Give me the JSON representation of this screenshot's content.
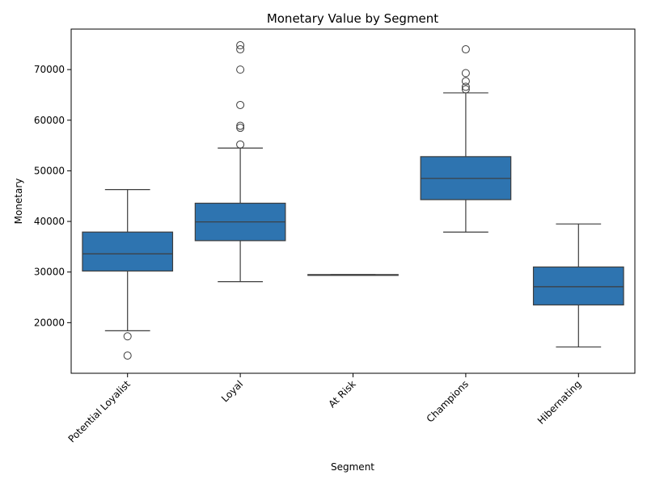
{
  "chart_data": {
    "type": "box",
    "title": "Monetary Value by Segment",
    "xlabel": "Segment",
    "ylabel": "Monetary",
    "ylim": [
      10000,
      78000
    ],
    "yticks": [
      20000,
      30000,
      40000,
      50000,
      60000,
      70000
    ],
    "grid": false,
    "box_color": "#2e74b0",
    "categories": [
      "Potential Loyalist",
      "Loyal",
      "At Risk",
      "Champions",
      "Hibernating"
    ],
    "boxes": [
      {
        "category": "Potential Loyalist",
        "whisker_low": 18400,
        "q1": 30200,
        "median": 33600,
        "q3": 37900,
        "whisker_high": 46300,
        "outliers": [
          17300,
          13500
        ]
      },
      {
        "category": "Loyal",
        "whisker_low": 28100,
        "q1": 36200,
        "median": 39900,
        "q3": 43600,
        "whisker_high": 54500,
        "outliers": [
          55200,
          58500,
          58900,
          63000,
          70000,
          74000,
          74800
        ]
      },
      {
        "category": "At Risk",
        "whisker_low": 29400,
        "q1": 29400,
        "median": 29450,
        "q3": 29500,
        "whisker_high": 29500,
        "outliers": []
      },
      {
        "category": "Champions",
        "whisker_low": 37900,
        "q1": 44300,
        "median": 48500,
        "q3": 52800,
        "whisker_high": 65400,
        "outliers": [
          66100,
          66600,
          67700,
          69300,
          74000
        ]
      },
      {
        "category": "Hibernating",
        "whisker_low": 15200,
        "q1": 23500,
        "median": 27100,
        "q3": 31000,
        "whisker_high": 39500,
        "outliers": []
      }
    ]
  }
}
